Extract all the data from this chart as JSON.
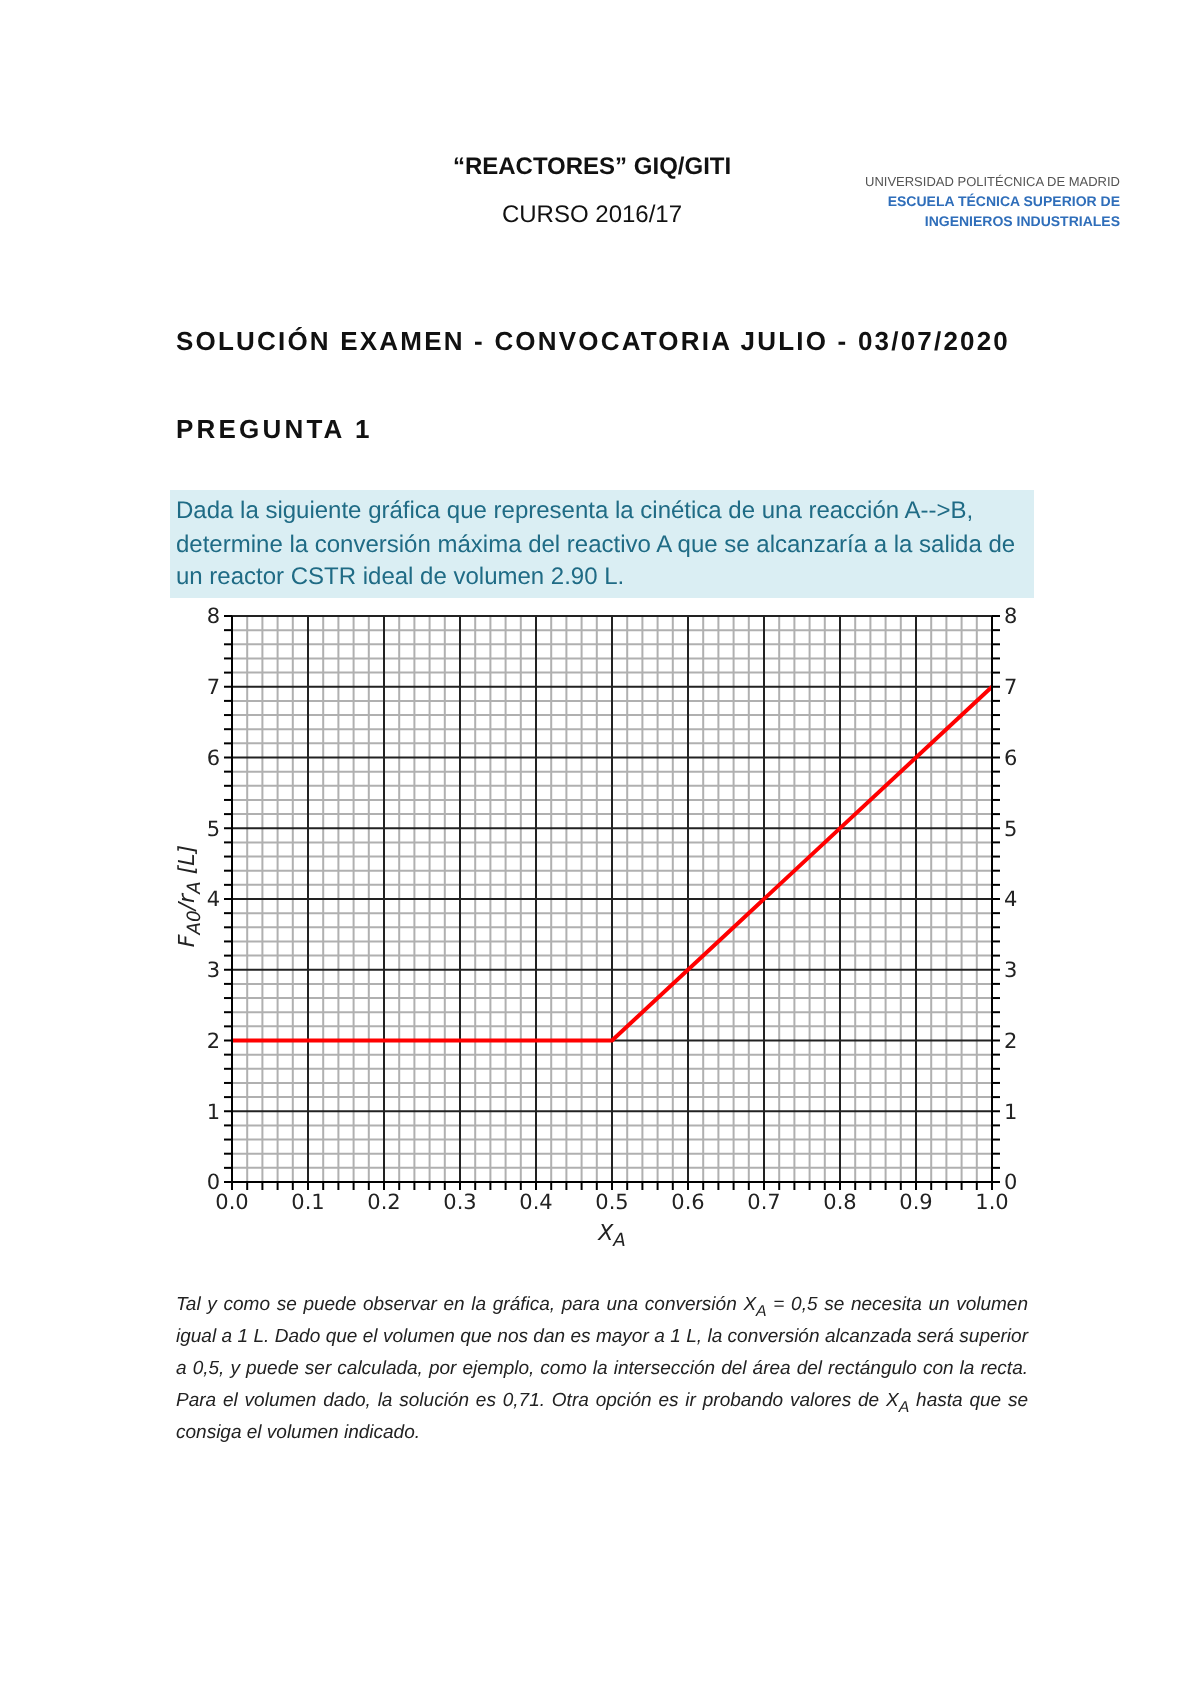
{
  "chart_data": {
    "type": "line",
    "title": "SOLUCIÓN EXAMEN - CONVOCATORIA JULIO - 03/07/2020",
    "subtitle": "PREGUNTA 1",
    "xlabel": "X$_{A}$",
    "ylabel": "F$_{A0}$/r$_{A}$ [L]",
    "annotations": [
      "“REACTORES” GIQ/GITI",
      "CURSO 2016/17",
      "UNIVERSIDAD POLITÉCNICA DE MADRID",
      "ESCUELA TÉCNICA SUPERIOR DE INGENIEROS INDUSTRIALES",
      "Dada la siguiente gráfica que representa la cinética de una reacción A-->B, determine la conversión máxima del reactivo A que se alcanzaría a la salida de un reactor CSTR ideal de volumen 2.90 L.",
      "Tal y como se puede observar en la gráfica, para una conversión X$_{A}$ = 0,5 se necesita un volumen igual a 1 L. Dado que el volumen que nos dan es mayor a 1 L, la conversión alcanzada será superior a 0,5, y puede ser calculada, por ejemplo, como la intersección del área del rectángulo con la recta. Para el volumen dado, la solución es 0,71. Otra opción es ir probando valores de X$_{A}$ hasta que se consiga el volumen indicado."
    ],
    "x": [
      0,
      0.5,
      1
    ],
    "series": [
      {
        "color": "#ff0000",
        "values": [
          2,
          2,
          7
        ]
      }
    ],
    "xlim": [
      0,
      1
    ],
    "xticks": [
      {
        "value": 0,
        "label": "0.0"
      },
      {
        "value": 0.02,
        "label": null
      },
      {
        "value": 0.04,
        "label": null
      },
      {
        "value": 0.06,
        "label": null
      },
      {
        "value": 0.08,
        "label": null
      },
      0.1,
      {
        "value": 0.12,
        "label": null
      },
      {
        "value": 0.14,
        "label": null
      },
      {
        "value": 0.16,
        "label": null
      },
      {
        "value": 0.18,
        "label": null
      },
      0.2,
      {
        "value": 0.22,
        "label": null
      },
      {
        "value": 0.24,
        "label": null
      },
      {
        "value": 0.26,
        "label": null
      },
      {
        "value": 0.28,
        "label": null
      },
      0.3,
      {
        "value": 0.32,
        "label": null
      },
      {
        "value": 0.34,
        "label": null
      },
      {
        "value": 0.36,
        "label": null
      },
      {
        "value": 0.38,
        "label": null
      },
      0.4,
      {
        "value": 0.42,
        "label": null
      },
      {
        "value": 0.44,
        "label": null
      },
      {
        "value": 0.46,
        "label": null
      },
      {
        "value": 0.48,
        "label": null
      },
      0.5,
      {
        "value": 0.52,
        "label": null
      },
      {
        "value": 0.54,
        "label": null
      },
      {
        "value": 0.56,
        "label": null
      },
      {
        "value": 0.58,
        "label": null
      },
      0.6,
      {
        "value": 0.62,
        "label": null
      },
      {
        "value": 0.64,
        "label": null
      },
      {
        "value": 0.66,
        "label": null
      },
      {
        "value": 0.68,
        "label": null
      },
      0.7,
      {
        "value": 0.72,
        "label": null
      },
      {
        "value": 0.74,
        "label": null
      },
      {
        "value": 0.76,
        "label": null
      },
      {
        "value": 0.78,
        "label": null
      },
      0.8,
      {
        "value": 0.82,
        "label": null
      },
      {
        "value": 0.84,
        "label": null
      },
      {
        "value": 0.86,
        "label": null
      },
      {
        "value": 0.88,
        "label": null
      },
      0.9,
      {
        "value": 0.92,
        "label": null
      },
      {
        "value": 0.94,
        "label": null
      },
      {
        "value": 0.96,
        "label": null
      },
      {
        "value": 0.98,
        "label": null
      },
      {
        "value": 1,
        "label": "1.0"
      }
    ],
    "ylim": [
      0,
      8
    ],
    "yticks": [
      0,
      {
        "value": 0.2,
        "label": null
      },
      {
        "value": 0.4,
        "label": null
      },
      {
        "value": 0.6,
        "label": null
      },
      {
        "value": 0.8,
        "label": null
      },
      1,
      {
        "value": 1.2,
        "label": null
      },
      {
        "value": 1.4,
        "label": null
      },
      {
        "value": 1.6,
        "label": null
      },
      {
        "value": 1.8,
        "label": null
      },
      2,
      {
        "value": 2.2,
        "label": null
      },
      {
        "value": 2.4,
        "label": null
      },
      {
        "value": 2.6,
        "label": null
      },
      {
        "value": 2.8,
        "label": null
      },
      3,
      {
        "value": 3.2,
        "label": null
      },
      {
        "value": 3.4,
        "label": null
      },
      {
        "value": 3.6,
        "label": null
      },
      {
        "value": 3.8,
        "label": null
      },
      4,
      {
        "value": 4.2,
        "label": null
      },
      {
        "value": 4.4,
        "label": null
      },
      {
        "value": 4.6,
        "label": null
      },
      {
        "value": 4.8,
        "label": null
      },
      5,
      {
        "value": 5.2,
        "label": null
      },
      {
        "value": 5.4,
        "label": null
      },
      {
        "value": 5.6,
        "label": null
      },
      {
        "value": 5.8,
        "label": null
      },
      6,
      {
        "value": 6.2,
        "label": null
      },
      {
        "value": 6.4,
        "label": null
      },
      {
        "value": 6.6,
        "label": null
      },
      {
        "value": 6.8,
        "label": null
      },
      7,
      {
        "value": 7.2,
        "label": null
      },
      {
        "value": 7.4,
        "label": null
      },
      {
        "value": 7.6,
        "label": null
      },
      {
        "value": 7.8,
        "label": null
      },
      8
    ],
    "y2lim": [
      0,
      8
    ],
    "y2ticks": [
      0,
      {
        "value": 0.2,
        "label": null
      },
      {
        "value": 0.4,
        "label": null
      },
      {
        "value": 0.6,
        "label": null
      },
      {
        "value": 0.8,
        "label": null
      },
      1,
      {
        "value": 1.2,
        "label": null
      },
      {
        "value": 1.4,
        "label": null
      },
      {
        "value": 1.6,
        "label": null
      },
      {
        "value": 1.8,
        "label": null
      },
      2,
      {
        "value": 2.2,
        "label": null
      },
      {
        "value": 2.4,
        "label": null
      },
      {
        "value": 2.6,
        "label": null
      },
      {
        "value": 2.8,
        "label": null
      },
      3,
      {
        "value": 3.2,
        "label": null
      },
      {
        "value": 3.4,
        "label": null
      },
      {
        "value": 3.6,
        "label": null
      },
      {
        "value": 3.8,
        "label": null
      },
      4,
      {
        "value": 4.2,
        "label": null
      },
      {
        "value": 4.4,
        "label": null
      },
      {
        "value": 4.6,
        "label": null
      },
      {
        "value": 4.8,
        "label": null
      },
      5,
      {
        "value": 5.2,
        "label": null
      },
      {
        "value": 5.4,
        "label": null
      },
      {
        "value": 5.6,
        "label": null
      },
      {
        "value": 5.8,
        "label": null
      },
      6,
      {
        "value": 6.2,
        "label": null
      },
      {
        "value": 6.4,
        "label": null
      },
      {
        "value": 6.6,
        "label": null
      },
      {
        "value": 6.8,
        "label": null
      },
      7,
      {
        "value": 7.2,
        "label": null
      },
      {
        "value": 7.4,
        "label": null
      },
      {
        "value": 7.6,
        "label": null
      },
      {
        "value": 7.8,
        "label": null
      },
      8
    ],
    "grid": true
  }
}
